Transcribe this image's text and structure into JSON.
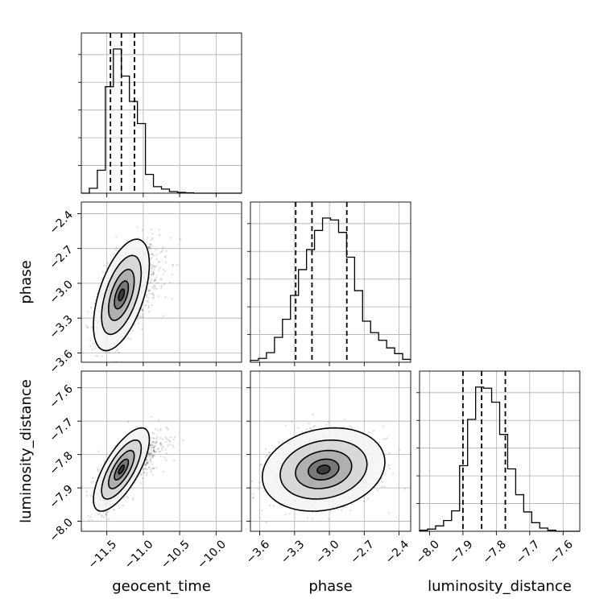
{
  "figure": {
    "type": "corner plot"
  },
  "chart_data": {
    "type": "corner",
    "parameters": [
      "geocent_time",
      "phase",
      "luminosity_distance"
    ],
    "axis_labels": {
      "geocent_time": "geocent_time",
      "phase": "phase",
      "luminosity_distance": "luminosity_distance"
    },
    "ranges": {
      "geocent_time": [
        -11.85,
        -9.65
      ],
      "phase": [
        -3.68,
        -2.3
      ],
      "luminosity_distance": [
        -8.03,
        -7.55
      ]
    },
    "ticks": {
      "geocent_time": [
        -11.5,
        -11.0,
        -10.5,
        -10.0
      ],
      "phase": [
        -3.6,
        -3.3,
        -3.0,
        -2.7,
        -2.4
      ],
      "luminosity_distance": [
        -8.0,
        -7.9,
        -7.8,
        -7.7,
        -7.6
      ]
    },
    "tick_labels": {
      "geocent_time": [
        "−11.5",
        "−11.0",
        "−10.5",
        "−10.0"
      ],
      "phase": [
        "−3.6",
        "−3.3",
        "−3.0",
        "−2.7",
        "−2.4"
      ],
      "luminosity_distance": [
        "−8.0",
        "−7.9",
        "−7.8",
        "−7.7",
        "−7.6"
      ]
    },
    "quantiles": {
      "geocent_time": [
        -11.45,
        -11.3,
        -11.12
      ],
      "phase": [
        -3.29,
        -3.15,
        -2.85
      ],
      "luminosity_distance": [
        -7.9,
        -7.844,
        -7.773
      ]
    },
    "histograms": {
      "geocent_time": {
        "edges": [
          -11.85,
          -11.74,
          -11.63,
          -11.52,
          -11.41,
          -11.3,
          -11.19,
          -11.08,
          -10.97,
          -10.86,
          -10.75,
          -10.64,
          -10.53,
          -10.42,
          -10.31,
          -10.2,
          -10.09,
          -9.98,
          -9.87,
          -9.76,
          -9.65
        ],
        "counts": [
          0,
          6,
          28,
          130,
          176,
          143,
          112,
          85,
          23,
          8,
          5,
          2,
          1,
          0.5,
          0,
          0,
          0,
          0,
          0,
          0
        ]
      },
      "phase": {
        "edges": [
          -3.68,
          -3.611,
          -3.542,
          -3.473,
          -3.404,
          -3.335,
          -3.266,
          -3.197,
          -3.128,
          -3.059,
          -2.99,
          -2.921,
          -2.852,
          -2.783,
          -2.714,
          -2.645,
          -2.576,
          -2.507,
          -2.438,
          -2.369,
          -2.3
        ],
        "counts": [
          2,
          4,
          10,
          26,
          45,
          70,
          97,
          118,
          138,
          151,
          149,
          136,
          110,
          75,
          43,
          31,
          23,
          15,
          9,
          3
        ]
      },
      "luminosity_distance": {
        "edges": [
          -8.03,
          -8.006,
          -7.982,
          -7.958,
          -7.934,
          -7.91,
          -7.886,
          -7.862,
          -7.838,
          -7.814,
          -7.79,
          -7.766,
          -7.742,
          -7.718,
          -7.694,
          -7.67,
          -7.646,
          -7.622,
          -7.598,
          -7.574,
          -7.55
        ],
        "counts": [
          1,
          2,
          5,
          10,
          19,
          61,
          104,
          134,
          133,
          120,
          90,
          58,
          34,
          18,
          8,
          3,
          1,
          0,
          0,
          0
        ]
      }
    },
    "density_2d": [
      {
        "x": "geocent_time",
        "y": "phase",
        "mean": [
          -11.3,
          -3.1
        ],
        "sd": [
          0.16,
          0.2
        ],
        "rho": 0.55
      },
      {
        "x": "geocent_time",
        "y": "luminosity_distance",
        "mean": [
          -11.3,
          -7.845
        ],
        "sd": [
          0.16,
          0.052
        ],
        "rho": 0.72
      },
      {
        "x": "phase",
        "y": "luminosity_distance",
        "mean": [
          -3.05,
          -7.845
        ],
        "sd": [
          0.22,
          0.052
        ],
        "rho": 0.18
      }
    ],
    "grid": true
  }
}
